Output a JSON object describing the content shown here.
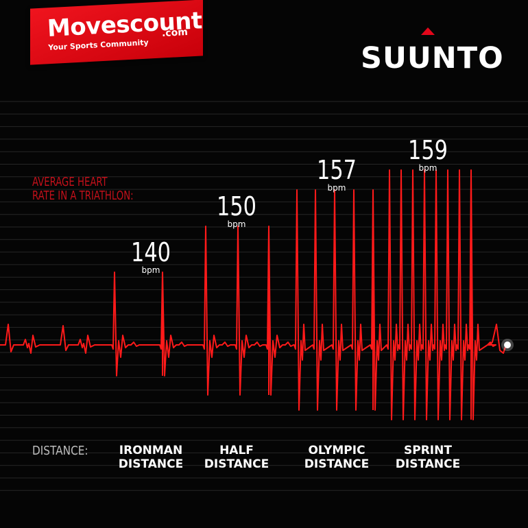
{
  "header": {
    "brand_name": "Movescount",
    "brand_com": ".com",
    "brand_tagline": "Your Sports Community",
    "logo_text": "SUUNTO"
  },
  "colors": {
    "background": "#050505",
    "ecg_line": "#ff1a1a",
    "brand_red": "#e3061a",
    "grid_line": "#262626"
  },
  "chart_data": {
    "type": "bar",
    "title_lines": [
      "AVERAGE HEART",
      "RATE IN A TRIATHLON:"
    ],
    "xlabel": "DISTANCE:",
    "categories": [
      [
        "IRONMAN",
        "DISTANCE"
      ],
      [
        "HALF",
        "DISTANCE"
      ],
      [
        "OLYMPIC",
        "DISTANCE"
      ],
      [
        "SPRINT",
        "DISTANCE"
      ]
    ],
    "values": [
      140,
      150,
      157,
      159
    ],
    "value_unit": "bpm",
    "grid": true,
    "visual": "heartbeat (ECG) trace where beat density and spike height increase with average heart rate"
  }
}
